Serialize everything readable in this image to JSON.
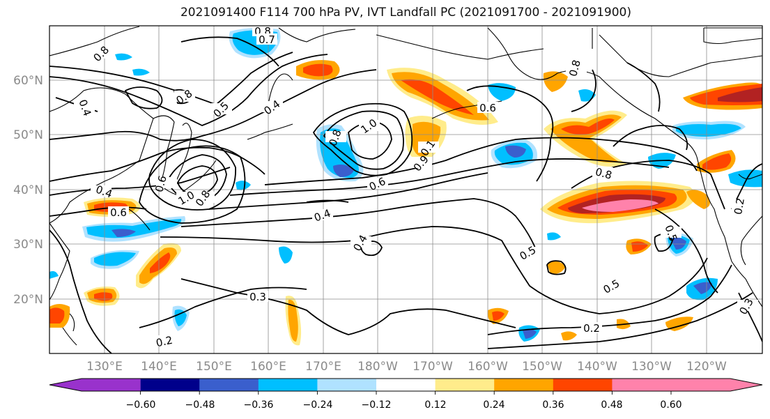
{
  "title": "2021091400 F114 700 hPa PV, IVT Landfall PC (2021091700 - 2021091900)",
  "lat_labels": [
    "60°N",
    "50°N",
    "40°N",
    "30°N",
    "20°N"
  ],
  "lon_labels": [
    "130°E",
    "140°E",
    "150°E",
    "160°E",
    "170°E",
    "180°W",
    "170°W",
    "160°W",
    "150°W",
    "140°W",
    "130°W",
    "120°W"
  ],
  "contour_labels": [
    "0.8",
    "0.7",
    "0.8",
    "0.4",
    "0.5",
    "0.4",
    "0.8",
    "1.0",
    "0.8",
    "0.1",
    "0.9",
    "0.6",
    "0.6",
    "0.8",
    "0.4",
    "1.0",
    "0.8",
    "0.6",
    "0.6",
    "0.4",
    "0.4",
    "0.3",
    "0.2",
    "0.5",
    "0.5",
    "0.2",
    "0.8",
    "0.5",
    "0.2",
    "0.3"
  ],
  "colorbar": {
    "ticks": [
      "−0.60",
      "−0.48",
      "−0.36",
      "−0.24",
      "−0.12",
      "0.12",
      "0.24",
      "0.36",
      "0.48",
      "0.60"
    ],
    "colors": [
      "#9932CC",
      "#00008B",
      "#3A5FCD",
      "#00BFFF",
      "#B0E2FF",
      "#FFFFFF",
      "#FFEC8B",
      "#FFA500",
      "#FF4500",
      "#B22222",
      "#FF82AB"
    ]
  }
}
